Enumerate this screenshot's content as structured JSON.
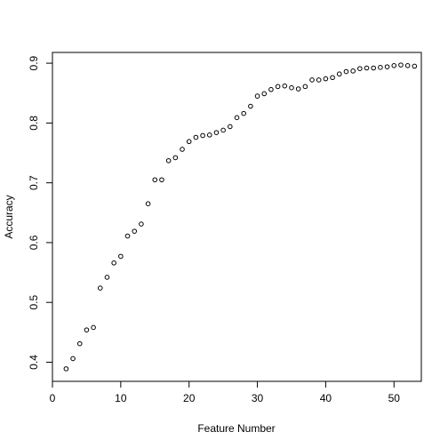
{
  "chart_data": {
    "type": "scatter",
    "title": "",
    "xlabel": "Feature Number",
    "ylabel": "Accuracy",
    "xlim": [
      0,
      54
    ],
    "ylim": [
      0.368,
      0.918
    ],
    "xticks": [
      0,
      10,
      20,
      30,
      40,
      50
    ],
    "yticks": [
      0.4,
      0.5,
      0.6,
      0.7,
      0.8,
      0.9
    ],
    "x": [
      2,
      3,
      4,
      5,
      6,
      7,
      8,
      9,
      10,
      11,
      12,
      13,
      14,
      15,
      16,
      17,
      18,
      19,
      20,
      21,
      22,
      23,
      24,
      25,
      26,
      27,
      28,
      29,
      30,
      31,
      32,
      33,
      34,
      35,
      36,
      37,
      38,
      39,
      40,
      41,
      42,
      43,
      44,
      45,
      46,
      47,
      48,
      49,
      50,
      51,
      52,
      53
    ],
    "y": [
      0.389,
      0.406,
      0.431,
      0.454,
      0.458,
      0.524,
      0.542,
      0.566,
      0.577,
      0.611,
      0.619,
      0.631,
      0.665,
      0.705,
      0.705,
      0.737,
      0.742,
      0.756,
      0.769,
      0.776,
      0.779,
      0.78,
      0.784,
      0.788,
      0.794,
      0.809,
      0.816,
      0.828,
      0.845,
      0.849,
      0.856,
      0.861,
      0.862,
      0.859,
      0.857,
      0.861,
      0.872,
      0.872,
      0.874,
      0.876,
      0.882,
      0.886,
      0.887,
      0.891,
      0.892,
      0.892,
      0.893,
      0.894,
      0.896,
      0.897,
      0.896,
      0.895
    ],
    "grid": false,
    "marker": "open-circle",
    "colors": {
      "points": "#000000",
      "axis": "#000000",
      "background": "#ffffff"
    }
  }
}
